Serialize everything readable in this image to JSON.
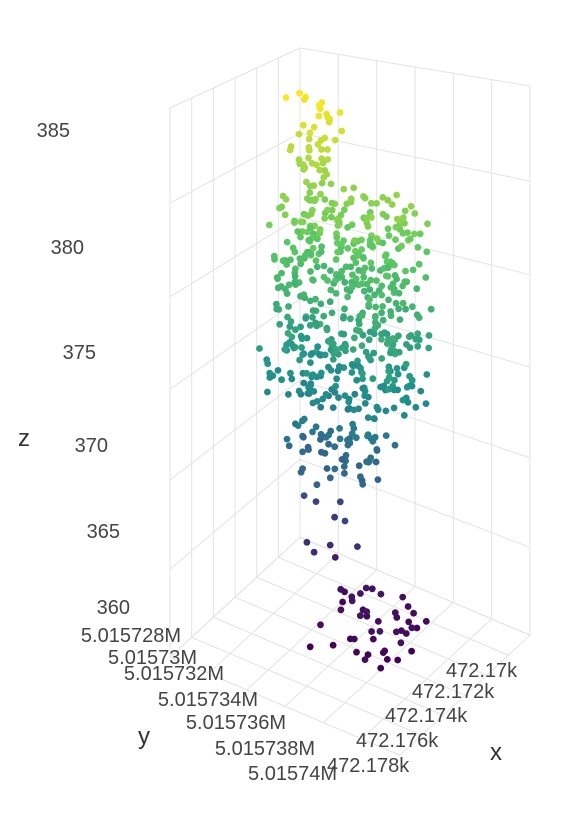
{
  "chart_data": {
    "type": "scatter",
    "dimensions": "3d",
    "title": "",
    "axes": {
      "x": {
        "label": "x",
        "ticks": [
          "472.17k",
          "472.172k",
          "472.174k",
          "472.176k",
          "472.178k"
        ],
        "range": [
          472169,
          472179
        ]
      },
      "y": {
        "label": "y",
        "ticks": [
          "5.015728M",
          "5.01573M",
          "5.015732M",
          "5.015734M",
          "5.015736M",
          "5.015738M",
          "5.01574M"
        ],
        "range": [
          5015727,
          5015741
        ]
      },
      "z": {
        "label": "z",
        "ticks": [
          "360",
          "365",
          "370",
          "375",
          "380",
          "385"
        ],
        "range": [
          359,
          389
        ]
      }
    },
    "grid": true,
    "colorscale": "viridis",
    "colors": {
      "low": "#440154",
      "mid": "#21918c",
      "high": "#fde725"
    },
    "clusters": [
      {
        "name_hint": "ground-low",
        "x": [
          472173.2,
          472176.8
        ],
        "y": [
          5015731.0,
          5015737.5
        ],
        "z": [
          360.0,
          362.0
        ],
        "count": 45
      },
      {
        "name_hint": "mid-sparse",
        "x": [
          472171.5,
          472174.5
        ],
        "y": [
          5015732.0,
          5015735.0
        ],
        "z": [
          362.0,
          366.5
        ],
        "count": 10
      },
      {
        "name_hint": "trunk",
        "x": [
          472171.5,
          472175.5
        ],
        "y": [
          5015732.5,
          5015736.5
        ],
        "z": [
          368.5,
          373.0
        ],
        "count": 85
      },
      {
        "name_hint": "lower-crown",
        "x": [
          472171.0,
          472177.0
        ],
        "y": [
          5015731.5,
          5015737.0
        ],
        "z": [
          373.0,
          378.0
        ],
        "count": 220
      },
      {
        "name_hint": "upper-crown",
        "x": [
          472171.0,
          472176.5
        ],
        "y": [
          5015731.0,
          5015736.0
        ],
        "z": [
          378.0,
          383.5
        ],
        "count": 260
      },
      {
        "name_hint": "top",
        "x": [
          472170.5,
          472172.5
        ],
        "y": [
          5015730.5,
          5015733.0
        ],
        "z": [
          383.5,
          388.0
        ],
        "count": 45
      }
    ]
  }
}
